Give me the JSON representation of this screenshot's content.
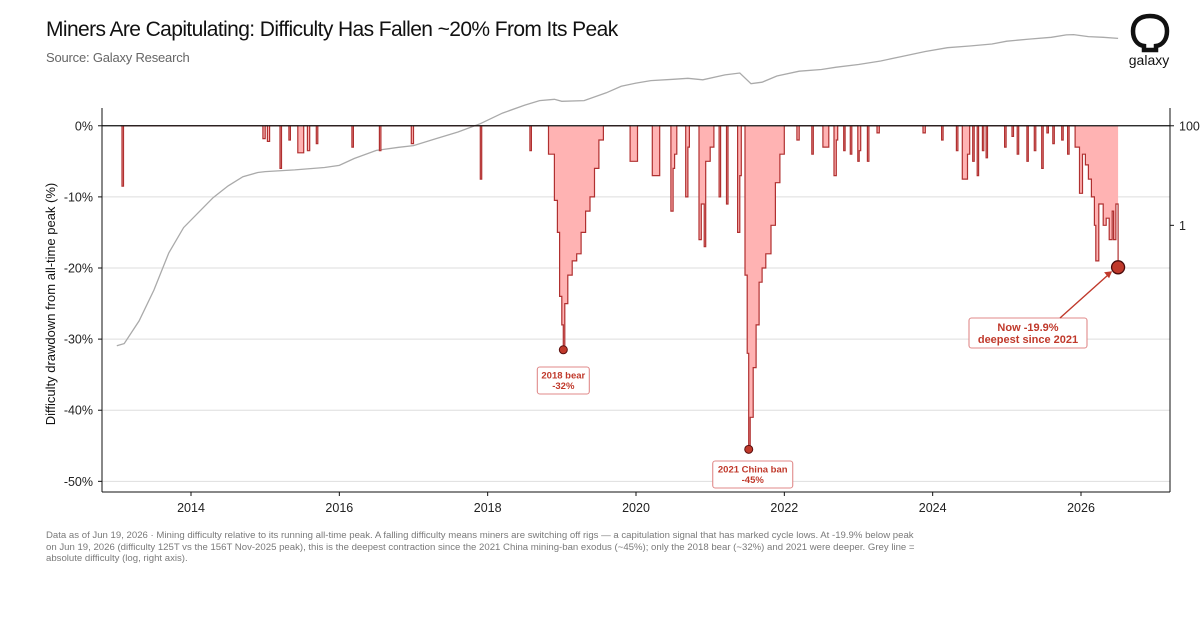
{
  "header": {
    "title": "Miners Are Capitulating: Difficulty Has Fallen ~20% From Its Peak",
    "subtitle": "Source: Galaxy Research"
  },
  "brand": {
    "logo_text": "galaxy",
    "logo_icon": "galaxy-logo-icon"
  },
  "footnote": "Data as of Jun 19, 2026 · Mining difficulty relative to its running all-time peak. A falling difficulty means miners are switching off rigs — a capitulation signal that has marked cycle lows. At -19.9% below peak on Jun 19, 2026 (difficulty 125T vs the 156T Nov-2025 peak), this is the deepest contraction since the 2021 China mining-ban exodus (~45%); only the 2018 bear (~32%) and 2021 were deeper. Grey line = absolute difficulty (log, right axis).",
  "chart_data": {
    "type": "area",
    "title": "Miners Are Capitulating: Difficulty Has Fallen ~20% From Its Peak",
    "ylabel": "Difficulty drawdown from all-time peak (%)",
    "y2label": "",
    "xlim": [
      2012.8,
      2027.2
    ],
    "ylim": [
      -51.5,
      2.5
    ],
    "x_ticks": [
      2014,
      2016,
      2018,
      2020,
      2022,
      2024,
      2026
    ],
    "x_tick_labels": [
      "2014",
      "2016",
      "2018",
      "2020",
      "2022",
      "2024",
      "2026"
    ],
    "y_ticks": [
      0,
      -10,
      -20,
      -30,
      -40,
      -50
    ],
    "y_tick_labels": [
      "0%",
      "-10%",
      "-20%",
      "-30%",
      "-40%",
      "-50%"
    ],
    "y2_scale": "log",
    "y2_ticks": [
      100,
      1
    ],
    "y2_tick_labels": [
      "100",
      "1"
    ],
    "grid": true,
    "colors": {
      "drawdown_line": "#b03030",
      "drawdown_fill": "#ffb3b3",
      "difficulty_line": "#aaaaaa",
      "annotation": "#c0392b"
    },
    "series": [
      {
        "axis": "left",
        "points": [
          [
            2013.05,
            0
          ],
          [
            2013.07,
            -8.5
          ],
          [
            2013.09,
            0
          ],
          [
            2014.95,
            0
          ],
          [
            2014.97,
            -1.8
          ],
          [
            2015.0,
            0
          ],
          [
            2015.03,
            -2.2
          ],
          [
            2015.06,
            0
          ],
          [
            2015.18,
            0
          ],
          [
            2015.2,
            -6
          ],
          [
            2015.22,
            0
          ],
          [
            2015.3,
            0
          ],
          [
            2015.32,
            -2
          ],
          [
            2015.34,
            0
          ],
          [
            2015.42,
            0
          ],
          [
            2015.44,
            -3.8
          ],
          [
            2015.5,
            -3.8
          ],
          [
            2015.52,
            0
          ],
          [
            2015.55,
            0
          ],
          [
            2015.57,
            -3.5
          ],
          [
            2015.6,
            0
          ],
          [
            2015.67,
            0
          ],
          [
            2015.69,
            -2.5
          ],
          [
            2015.71,
            0
          ],
          [
            2016.15,
            0
          ],
          [
            2016.17,
            -3
          ],
          [
            2016.19,
            0
          ],
          [
            2016.52,
            0
          ],
          [
            2016.54,
            -3.5
          ],
          [
            2016.56,
            0
          ],
          [
            2016.95,
            0
          ],
          [
            2016.97,
            -2.5
          ],
          [
            2017.0,
            0
          ],
          [
            2017.88,
            0
          ],
          [
            2017.9,
            -7.5
          ],
          [
            2017.92,
            0
          ],
          [
            2018.55,
            0
          ],
          [
            2018.57,
            -3.5
          ],
          [
            2018.59,
            0
          ],
          [
            2018.8,
            0
          ],
          [
            2018.82,
            -4
          ],
          [
            2018.88,
            -4
          ],
          [
            2018.9,
            -10.5
          ],
          [
            2018.94,
            -15
          ],
          [
            2018.97,
            -24
          ],
          [
            2019.0,
            -28
          ],
          [
            2019.02,
            -31.5
          ],
          [
            2019.04,
            -25
          ],
          [
            2019.08,
            -21
          ],
          [
            2019.14,
            -19
          ],
          [
            2019.2,
            -18
          ],
          [
            2019.26,
            -15
          ],
          [
            2019.32,
            -12
          ],
          [
            2019.38,
            -10
          ],
          [
            2019.44,
            -6
          ],
          [
            2019.5,
            -2
          ],
          [
            2019.56,
            0
          ],
          [
            2019.9,
            0
          ],
          [
            2019.92,
            -5
          ],
          [
            2020.0,
            -5
          ],
          [
            2020.02,
            0
          ],
          [
            2020.2,
            0
          ],
          [
            2020.22,
            -7
          ],
          [
            2020.3,
            -7
          ],
          [
            2020.32,
            0
          ],
          [
            2020.45,
            0
          ],
          [
            2020.47,
            -12
          ],
          [
            2020.5,
            -6
          ],
          [
            2020.52,
            -4
          ],
          [
            2020.55,
            0
          ],
          [
            2020.65,
            0
          ],
          [
            2020.67,
            -10
          ],
          [
            2020.7,
            -3
          ],
          [
            2020.72,
            0
          ],
          [
            2020.83,
            0
          ],
          [
            2020.85,
            -16
          ],
          [
            2020.88,
            -11
          ],
          [
            2020.92,
            -17
          ],
          [
            2020.94,
            -5
          ],
          [
            2021.0,
            -3
          ],
          [
            2021.05,
            0
          ],
          [
            2021.1,
            0
          ],
          [
            2021.12,
            -10
          ],
          [
            2021.14,
            0
          ],
          [
            2021.2,
            0
          ],
          [
            2021.22,
            -11
          ],
          [
            2021.24,
            0
          ],
          [
            2021.35,
            0
          ],
          [
            2021.37,
            -15
          ],
          [
            2021.4,
            -7
          ],
          [
            2021.42,
            0
          ],
          [
            2021.45,
            0
          ],
          [
            2021.47,
            -21
          ],
          [
            2021.5,
            -32
          ],
          [
            2021.52,
            -45.5
          ],
          [
            2021.54,
            -41
          ],
          [
            2021.58,
            -34
          ],
          [
            2021.62,
            -28
          ],
          [
            2021.66,
            -22
          ],
          [
            2021.7,
            -20
          ],
          [
            2021.75,
            -18
          ],
          [
            2021.82,
            -14
          ],
          [
            2021.88,
            -8
          ],
          [
            2021.94,
            -4
          ],
          [
            2022.0,
            0
          ],
          [
            2022.15,
            0
          ],
          [
            2022.17,
            -2
          ],
          [
            2022.2,
            0
          ],
          [
            2022.35,
            0
          ],
          [
            2022.37,
            -4
          ],
          [
            2022.39,
            0
          ],
          [
            2022.5,
            0
          ],
          [
            2022.52,
            -3
          ],
          [
            2022.58,
            -3
          ],
          [
            2022.6,
            0
          ],
          [
            2022.65,
            0
          ],
          [
            2022.67,
            -7
          ],
          [
            2022.7,
            -2
          ],
          [
            2022.72,
            0
          ],
          [
            2022.78,
            0
          ],
          [
            2022.8,
            -3.5
          ],
          [
            2022.82,
            0
          ],
          [
            2022.87,
            0
          ],
          [
            2022.89,
            -4
          ],
          [
            2022.91,
            0
          ],
          [
            2022.97,
            0
          ],
          [
            2022.99,
            -5
          ],
          [
            2023.01,
            -3.5
          ],
          [
            2023.03,
            0
          ],
          [
            2023.1,
            0
          ],
          [
            2023.12,
            -5
          ],
          [
            2023.14,
            0
          ],
          [
            2023.23,
            0
          ],
          [
            2023.25,
            -1
          ],
          [
            2023.28,
            0
          ],
          [
            2023.85,
            0
          ],
          [
            2023.87,
            -1
          ],
          [
            2023.9,
            0
          ],
          [
            2024.1,
            0
          ],
          [
            2024.12,
            -2
          ],
          [
            2024.14,
            0
          ],
          [
            2024.3,
            0
          ],
          [
            2024.32,
            -3.5
          ],
          [
            2024.34,
            0
          ],
          [
            2024.38,
            0
          ],
          [
            2024.4,
            -7.5
          ],
          [
            2024.45,
            -7.5
          ],
          [
            2024.47,
            -4
          ],
          [
            2024.5,
            0
          ],
          [
            2024.52,
            0
          ],
          [
            2024.54,
            -5
          ],
          [
            2024.56,
            0
          ],
          [
            2024.58,
            0
          ],
          [
            2024.6,
            -7
          ],
          [
            2024.62,
            0
          ],
          [
            2024.65,
            0
          ],
          [
            2024.67,
            -3.5
          ],
          [
            2024.69,
            0
          ],
          [
            2024.7,
            0
          ],
          [
            2024.72,
            -4.5
          ],
          [
            2024.74,
            0
          ],
          [
            2024.95,
            0
          ],
          [
            2024.97,
            -3
          ],
          [
            2024.99,
            0
          ],
          [
            2025.05,
            0
          ],
          [
            2025.07,
            -1.5
          ],
          [
            2025.09,
            0
          ],
          [
            2025.12,
            0
          ],
          [
            2025.14,
            -4
          ],
          [
            2025.16,
            0
          ],
          [
            2025.25,
            0
          ],
          [
            2025.27,
            -5
          ],
          [
            2025.29,
            0
          ],
          [
            2025.35,
            0
          ],
          [
            2025.37,
            -3.5
          ],
          [
            2025.39,
            0
          ],
          [
            2025.45,
            0
          ],
          [
            2025.47,
            -6
          ],
          [
            2025.49,
            0
          ],
          [
            2025.52,
            0
          ],
          [
            2025.54,
            -1
          ],
          [
            2025.56,
            0
          ],
          [
            2025.6,
            0
          ],
          [
            2025.62,
            -2.5
          ],
          [
            2025.64,
            0
          ],
          [
            2025.72,
            0
          ],
          [
            2025.74,
            -2
          ],
          [
            2025.76,
            0
          ],
          [
            2025.8,
            0
          ],
          [
            2025.82,
            -4
          ],
          [
            2025.84,
            0
          ],
          [
            2025.9,
            0
          ],
          [
            2025.92,
            -3
          ],
          [
            2025.96,
            -3
          ],
          [
            2025.98,
            -9.5
          ],
          [
            2026.02,
            -4
          ],
          [
            2026.06,
            -5.5
          ],
          [
            2026.1,
            -7.5
          ],
          [
            2026.14,
            -10
          ],
          [
            2026.18,
            -14
          ],
          [
            2026.2,
            -19
          ],
          [
            2026.24,
            -11
          ],
          [
            2026.28,
            -11
          ],
          [
            2026.3,
            -14
          ],
          [
            2026.34,
            -13
          ],
          [
            2026.38,
            -16
          ],
          [
            2026.42,
            -12
          ],
          [
            2026.44,
            -16
          ],
          [
            2026.47,
            -11
          ],
          [
            2026.5,
            -19.9
          ]
        ]
      },
      {
        "axis": "right",
        "points": [
          [
            2013.0,
            0.0038
          ],
          [
            2013.1,
            0.0042
          ],
          [
            2013.3,
            0.012
          ],
          [
            2013.5,
            0.05
          ],
          [
            2013.7,
            0.28
          ],
          [
            2013.9,
            0.9
          ],
          [
            2014.1,
            1.8
          ],
          [
            2014.3,
            3.6
          ],
          [
            2014.5,
            6.2
          ],
          [
            2014.7,
            9.5
          ],
          [
            2014.9,
            11.5
          ],
          [
            2015.0,
            12
          ],
          [
            2015.4,
            13
          ],
          [
            2015.8,
            14.5
          ],
          [
            2016.0,
            16
          ],
          [
            2016.2,
            22
          ],
          [
            2016.5,
            32
          ],
          [
            2016.8,
            37
          ],
          [
            2017.0,
            40
          ],
          [
            2017.3,
            55
          ],
          [
            2017.6,
            75
          ],
          [
            2017.9,
            110
          ],
          [
            2018.2,
            180
          ],
          [
            2018.5,
            260
          ],
          [
            2018.7,
            320
          ],
          [
            2018.9,
            340
          ],
          [
            2019.0,
            310
          ],
          [
            2019.3,
            320
          ],
          [
            2019.6,
            460
          ],
          [
            2019.8,
            620
          ],
          [
            2020.0,
            720
          ],
          [
            2020.2,
            810
          ],
          [
            2020.5,
            860
          ],
          [
            2020.7,
            900
          ],
          [
            2020.9,
            840
          ],
          [
            2021.2,
            1050
          ],
          [
            2021.4,
            1150
          ],
          [
            2021.55,
            700
          ],
          [
            2021.7,
            750
          ],
          [
            2021.9,
            1000
          ],
          [
            2022.2,
            1250
          ],
          [
            2022.5,
            1350
          ],
          [
            2022.7,
            1500
          ],
          [
            2023.0,
            1700
          ],
          [
            2023.3,
            2000
          ],
          [
            2023.6,
            2500
          ],
          [
            2023.9,
            3100
          ],
          [
            2024.2,
            3700
          ],
          [
            2024.5,
            4000
          ],
          [
            2024.8,
            4400
          ],
          [
            2025.0,
            5000
          ],
          [
            2025.3,
            5500
          ],
          [
            2025.6,
            6000
          ],
          [
            2025.8,
            6700
          ],
          [
            2025.9,
            6800
          ],
          [
            2026.1,
            6200
          ],
          [
            2026.3,
            6000
          ],
          [
            2026.5,
            5700
          ]
        ]
      }
    ],
    "highlights": [
      {
        "x": 2019.02,
        "y": -31.5,
        "label": [
          "2018 bear",
          "-32%"
        ]
      },
      {
        "x": 2021.52,
        "y": -45.5,
        "label": [
          "2021 China ban",
          "-45%"
        ]
      },
      {
        "x": 2026.5,
        "y": -19.9,
        "label": [
          "Now -19.9%",
          "deepest since 2021"
        ]
      }
    ]
  }
}
